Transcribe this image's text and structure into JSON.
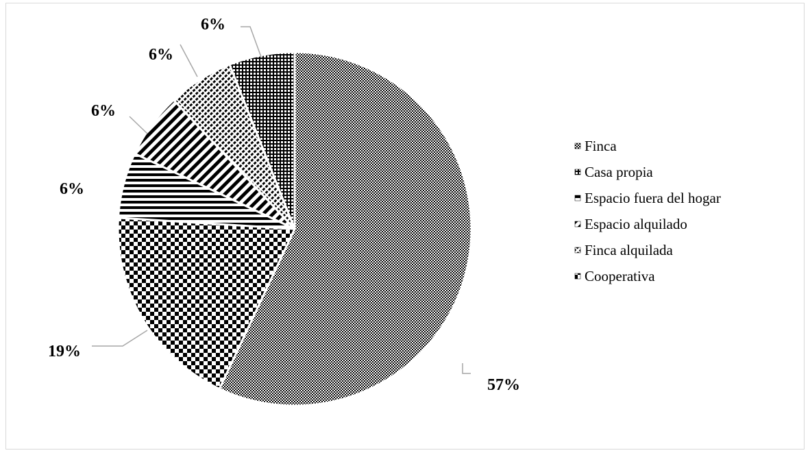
{
  "chart_data": {
    "type": "pie",
    "title": "",
    "legend_position": "right",
    "start_angle_deg": 0,
    "direction": "clockwise",
    "slices": [
      {
        "label": "Finca",
        "value": 57,
        "value_label": "57%",
        "pattern": "fine-dots"
      },
      {
        "label": "Cooperativa",
        "value": 19,
        "value_label": "19%",
        "pattern": "checker"
      },
      {
        "label": "Espacio fuera del hogar",
        "value": 6,
        "value_label": "6%",
        "pattern": "horizontal-lines"
      },
      {
        "label": "Espacio alquilado",
        "value": 6,
        "value_label": "6%",
        "pattern": "diagonal-lines"
      },
      {
        "label": "Finca alquilada",
        "value": 6,
        "value_label": "6%",
        "pattern": "dense-dots"
      },
      {
        "label": "Casa propia",
        "value": 6,
        "value_label": "6%",
        "pattern": "small-checker"
      }
    ],
    "legend_order": [
      "Finca",
      "Casa propia",
      "Espacio fuera del hogar",
      "Espacio alquilado",
      "Finca alquilada",
      "Cooperativa"
    ],
    "colors": {
      "ink": "#000000",
      "background": "#ffffff",
      "leader_line": "#a6a6a6",
      "border": "#d9d9d9"
    }
  }
}
